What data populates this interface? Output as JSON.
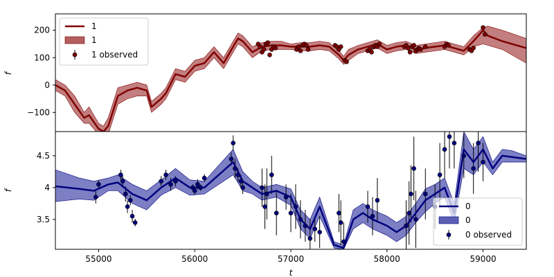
{
  "colors": {
    "top_line": "#800000",
    "top_band": "#b45f5f",
    "top_points": "#800000",
    "bottom_line": "#00007f",
    "bottom_band": "#5b5fb4",
    "bottom_points": "#00007f",
    "errorbar": "#000000"
  },
  "chart_data": [
    {
      "type": "line",
      "xlabel": "",
      "ylabel": "f",
      "xlim": [
        54550,
        59450
      ],
      "ylim": [
        -170,
        260
      ],
      "xticks": [],
      "yticks": [
        -100,
        0,
        100,
        200
      ],
      "ytick_labels": [
        "−100",
        "0",
        "100",
        "200"
      ],
      "legend": {
        "placement": "upper-left",
        "entries": [
          "1",
          "1",
          "1 observed"
        ]
      },
      "series": [
        {
          "name": "1",
          "kind": "mean",
          "x": [
            54550,
            54650,
            54750,
            54850,
            54900,
            55000,
            55050,
            55100,
            55200,
            55300,
            55400,
            55500,
            55550,
            55650,
            55700,
            55800,
            55900,
            56000,
            56100,
            56200,
            56300,
            56400,
            56450,
            56500,
            56550,
            56600,
            56700,
            56800,
            56900,
            57000,
            57100,
            57200,
            57300,
            57400,
            57500,
            57550,
            57600,
            57700,
            57800,
            57900,
            58000,
            58100,
            58200,
            58300,
            58400,
            58500,
            58600,
            58700,
            58800,
            58900,
            59000,
            59050,
            59200,
            59450
          ],
          "values": [
            0,
            -20,
            -70,
            -120,
            -110,
            -160,
            -170,
            -150,
            -40,
            -20,
            -10,
            -20,
            -80,
            -50,
            -30,
            40,
            30,
            70,
            80,
            120,
            80,
            140,
            170,
            160,
            140,
            120,
            140,
            145,
            145,
            140,
            140,
            140,
            145,
            140,
            110,
            90,
            110,
            130,
            140,
            150,
            130,
            140,
            145,
            130,
            135,
            140,
            145,
            135,
            125,
            160,
            200,
            180,
            160,
            135
          ],
          "band_lower": [
            -20,
            -40,
            -100,
            -140,
            -140,
            -180,
            -190,
            -180,
            -70,
            -50,
            -40,
            -40,
            -100,
            -70,
            -50,
            20,
            10,
            50,
            60,
            100,
            60,
            120,
            150,
            140,
            120,
            100,
            125,
            130,
            130,
            130,
            125,
            125,
            130,
            125,
            95,
            75,
            90,
            115,
            125,
            135,
            115,
            125,
            130,
            115,
            120,
            125,
            130,
            120,
            110,
            140,
            150,
            145,
            130,
            80
          ],
          "band_upper": [
            20,
            0,
            -40,
            -100,
            -80,
            -140,
            -150,
            -120,
            -10,
            0,
            10,
            0,
            -60,
            -30,
            -10,
            60,
            50,
            90,
            100,
            140,
            100,
            160,
            190,
            180,
            160,
            140,
            155,
            160,
            160,
            150,
            155,
            155,
            160,
            155,
            125,
            105,
            130,
            145,
            155,
            165,
            145,
            155,
            160,
            145,
            150,
            155,
            160,
            150,
            140,
            180,
            210,
            215,
            200,
            170
          ]
        },
        {
          "name": "1 observed",
          "kind": "observed",
          "x": [
            56660,
            56680,
            56700,
            56720,
            56740,
            56760,
            56780,
            56800,
            56820,
            56840,
            57060,
            57080,
            57100,
            57120,
            57140,
            57160,
            57180,
            57460,
            57480,
            57500,
            57520,
            57560,
            57580,
            57800,
            57820,
            57840,
            57860,
            57880,
            57900,
            57920,
            58180,
            58200,
            58220,
            58240,
            58260,
            58280,
            58300,
            58320,
            58330,
            58350,
            58400,
            58600,
            58620,
            58640,
            58860,
            58880,
            58900,
            59000,
            59020
          ],
          "values": [
            150,
            140,
            120,
            130,
            150,
            155,
            110,
            130,
            140,
            135,
            130,
            140,
            125,
            145,
            150,
            145,
            130,
            145,
            140,
            130,
            140,
            90,
            85,
            125,
            130,
            120,
            140,
            145,
            140,
            150,
            140,
            145,
            135,
            120,
            140,
            145,
            125,
            130,
            135,
            130,
            140,
            140,
            150,
            145,
            130,
            125,
            135,
            210,
            185
          ]
        }
      ]
    },
    {
      "type": "line",
      "xlabel": "t",
      "ylabel": "f",
      "xlim": [
        54550,
        59450
      ],
      "ylim": [
        3.03,
        4.88
      ],
      "xticks": [
        55000,
        56000,
        57000,
        58000,
        59000
      ],
      "yticks": [
        3.5,
        4.0,
        4.5
      ],
      "legend": {
        "placement": "lower-right",
        "entries": [
          "0",
          "0",
          "0 observed"
        ]
      },
      "series": [
        {
          "name": "0",
          "kind": "mean",
          "x": [
            54550,
            54800,
            54950,
            55100,
            55200,
            55350,
            55500,
            55650,
            55800,
            55950,
            56100,
            56250,
            56400,
            56500,
            56600,
            56700,
            56850,
            57000,
            57100,
            57200,
            57300,
            57450,
            57550,
            57650,
            57750,
            57850,
            58000,
            58100,
            58200,
            58300,
            58400,
            58500,
            58600,
            58700,
            58800,
            58900,
            59000,
            59100,
            59200,
            59300,
            59450
          ],
          "values": [
            4.02,
            3.98,
            3.95,
            4.05,
            4.08,
            3.9,
            3.8,
            4.0,
            4.15,
            4.0,
            4.0,
            4.2,
            4.4,
            4.1,
            4.0,
            3.9,
            3.95,
            3.85,
            3.5,
            3.35,
            3.7,
            3.1,
            3.05,
            3.5,
            3.6,
            3.5,
            3.4,
            3.3,
            3.4,
            3.6,
            3.8,
            3.9,
            4.0,
            3.6,
            4.6,
            4.4,
            4.6,
            4.3,
            4.5,
            4.48,
            4.45
          ],
          "band_lower": [
            3.78,
            3.82,
            3.8,
            3.95,
            3.95,
            3.75,
            3.65,
            3.88,
            4.0,
            3.88,
            3.9,
            4.05,
            4.2,
            3.95,
            3.9,
            3.8,
            3.85,
            3.72,
            3.35,
            3.2,
            3.55,
            3.05,
            3.03,
            3.35,
            3.45,
            3.35,
            3.25,
            3.15,
            3.25,
            3.45,
            3.62,
            3.75,
            3.85,
            3.45,
            4.3,
            4.2,
            4.4,
            4.2,
            4.4,
            4.4,
            4.4
          ],
          "band_upper": [
            4.28,
            4.15,
            4.1,
            4.15,
            4.2,
            4.05,
            3.95,
            4.12,
            4.3,
            4.12,
            4.1,
            4.35,
            4.6,
            4.25,
            4.1,
            4.0,
            4.05,
            3.98,
            3.65,
            3.5,
            3.85,
            3.15,
            3.1,
            3.65,
            3.75,
            3.65,
            3.55,
            3.45,
            3.55,
            3.75,
            3.98,
            4.05,
            4.15,
            3.75,
            4.88,
            4.6,
            4.8,
            4.4,
            4.6,
            4.58,
            4.5
          ]
        },
        {
          "name": "0 observed",
          "kind": "observed",
          "x": [
            54970,
            55000,
            55230,
            55250,
            55280,
            55300,
            55330,
            55350,
            55380,
            55650,
            55700,
            55750,
            55800,
            55980,
            56000,
            56030,
            56060,
            56100,
            56380,
            56400,
            56420,
            56450,
            56480,
            56500,
            56700,
            56730,
            56750,
            56800,
            56850,
            56950,
            57000,
            57050,
            57100,
            57150,
            57200,
            57250,
            57300,
            57500,
            57520,
            57550,
            57800,
            57850,
            57900,
            58200,
            58230,
            58250,
            58280,
            58300,
            58400,
            58500,
            58550,
            58600,
            58650,
            58700,
            58800,
            58900,
            58950,
            59000
          ],
          "values": [
            3.85,
            4.05,
            4.2,
            4.1,
            3.9,
            3.7,
            3.8,
            3.55,
            3.45,
            4.1,
            4.2,
            4.05,
            4.1,
            4.0,
            3.95,
            4.05,
            4.0,
            4.15,
            4.45,
            4.7,
            4.3,
            4.2,
            4.1,
            4.0,
            4.0,
            3.7,
            3.9,
            4.2,
            3.6,
            3.85,
            3.6,
            3.7,
            3.5,
            3.4,
            3.2,
            3.35,
            3.3,
            3.6,
            3.45,
            3.15,
            3.7,
            3.55,
            3.8,
            3.4,
            3.6,
            3.9,
            4.3,
            3.5,
            3.9,
            3.7,
            4.2,
            4.6,
            4.8,
            4.7,
            4.5,
            4.3,
            4.7,
            4.4
          ],
          "errors": [
            0.1,
            0.06,
            0.08,
            0.1,
            0.12,
            0.1,
            0.08,
            0.1,
            0.06,
            0.08,
            0.08,
            0.1,
            0.08,
            0.05,
            0.06,
            0.08,
            0.05,
            0.06,
            0.1,
            0.12,
            0.15,
            0.1,
            0.1,
            0.1,
            0.3,
            0.35,
            0.4,
            0.3,
            0.35,
            0.2,
            0.3,
            0.35,
            0.3,
            0.25,
            0.3,
            0.2,
            0.25,
            0.3,
            0.35,
            0.3,
            0.25,
            0.3,
            0.35,
            0.4,
            0.5,
            0.45,
            0.5,
            0.45,
            0.4,
            0.35,
            0.5,
            0.45,
            0.5,
            0.4,
            0.35,
            0.4,
            0.45,
            0.3
          ]
        }
      ]
    }
  ]
}
